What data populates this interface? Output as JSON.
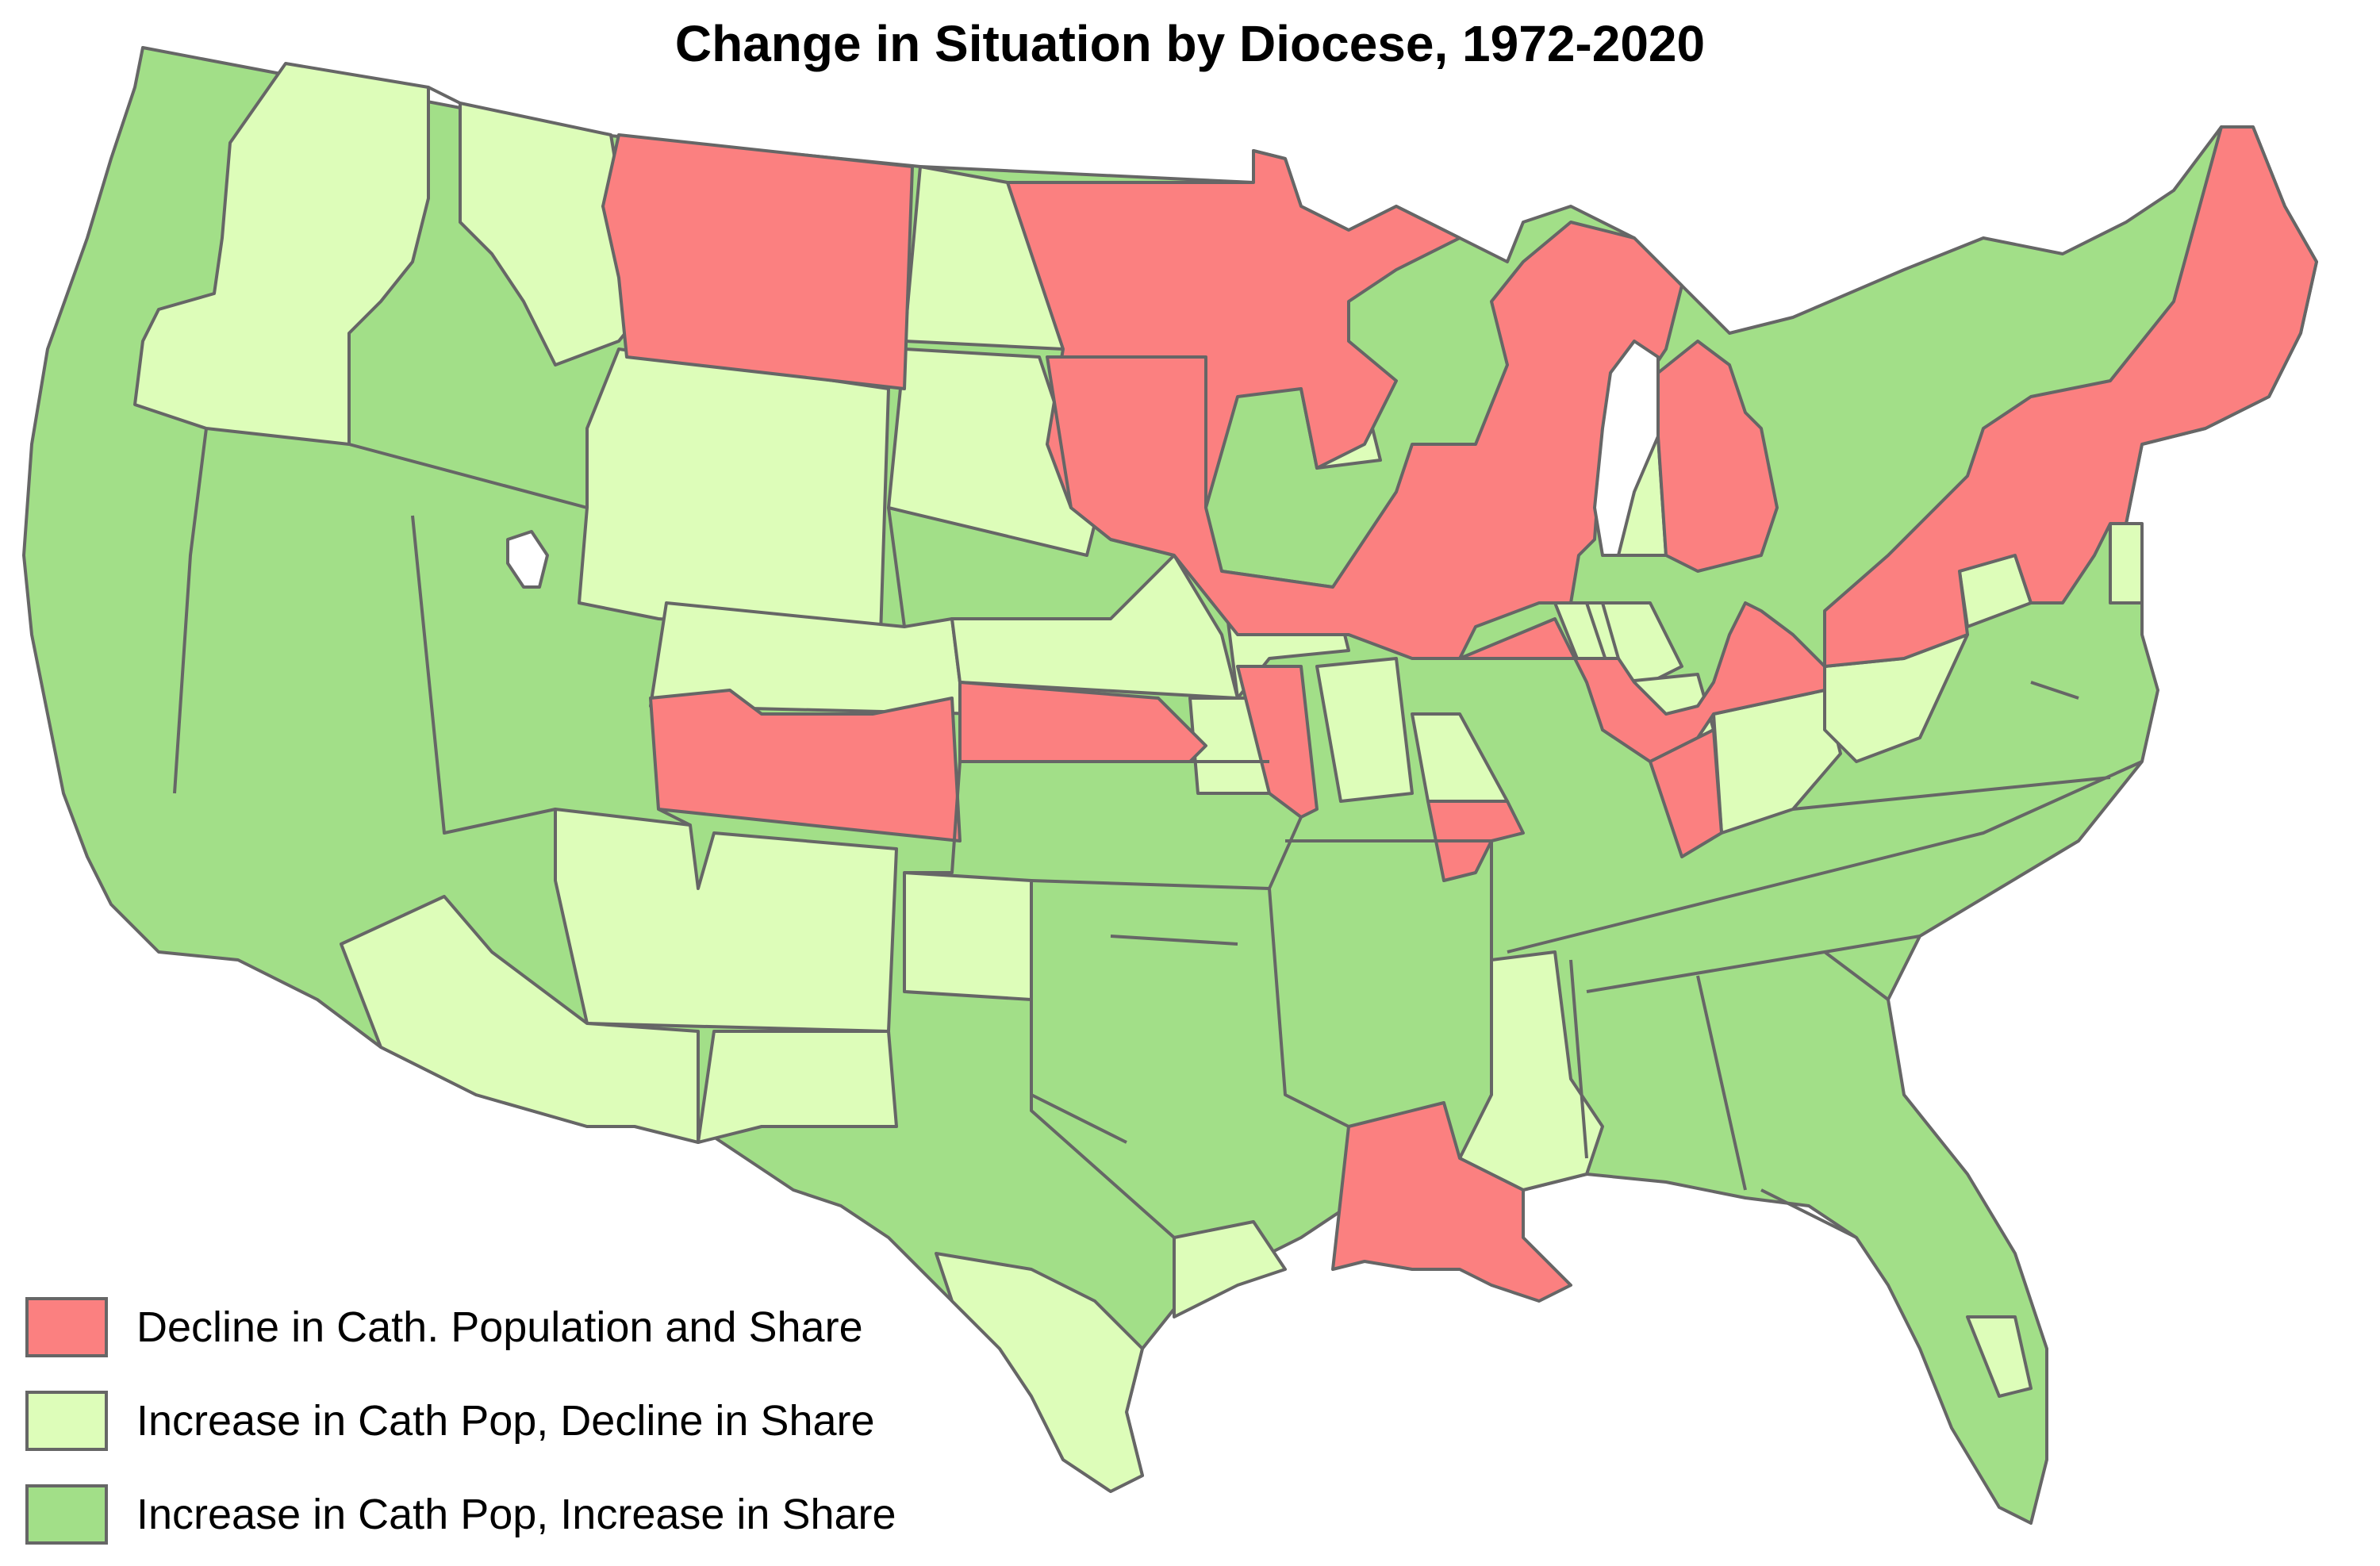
{
  "title": "Change in Situation by Diocese, 1972-2020",
  "legend": {
    "items": [
      {
        "label": "Decline in Cath. Population and Share",
        "color": "#fb8080"
      },
      {
        "label": "Increase in Cath Pop, Decline in Share",
        "color": "#ddfdb9"
      },
      {
        "label": "Increase in Cath Pop, Increase in Share",
        "color": "#a2df88"
      }
    ]
  },
  "colors": {
    "decline": "#fb8080",
    "pop_up_share_down": "#ddfdb9",
    "pop_up_share_up": "#a2df88",
    "border": "#666666",
    "lake": "#ffffff"
  }
}
